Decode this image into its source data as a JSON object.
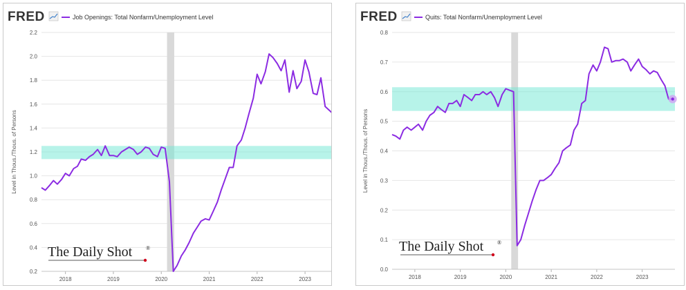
{
  "source_logo": "FRED",
  "watermark": {
    "text": "The Daily Shot",
    "mark": "®"
  },
  "colors": {
    "line": "#8b2be2",
    "band": "#6fe8d4",
    "recession": "#d9d9d9",
    "grid": "#e6e6e6",
    "endpoint": "#cfa6f2"
  },
  "chart_data": [
    {
      "type": "line",
      "series": [
        {
          "name": "Job Openings: Total Nonfarm/Unemployment Level"
        }
      ],
      "ylabel": "Level in Thous./Thous. of Persons",
      "xlim": [
        2017.5,
        2023.72
      ],
      "ylim": [
        0.2,
        2.2
      ],
      "yticks": [
        "0.2",
        "0.4",
        "0.6",
        "0.8",
        "1.0",
        "1.2",
        "1.4",
        "1.6",
        "1.8",
        "2.0",
        "2.2"
      ],
      "xticks": [
        "2018",
        "2019",
        "2020",
        "2021",
        "2022",
        "2023"
      ],
      "grid": "horizontal",
      "recession_shading": [
        2020.12,
        2020.27
      ],
      "highlight_band": [
        1.14,
        1.25
      ],
      "x": [
        2017.5,
        2017.58,
        2017.67,
        2017.75,
        2017.83,
        2017.92,
        2018.0,
        2018.08,
        2018.17,
        2018.25,
        2018.33,
        2018.42,
        2018.5,
        2018.58,
        2018.67,
        2018.75,
        2018.83,
        2018.92,
        2019.0,
        2019.08,
        2019.17,
        2019.25,
        2019.33,
        2019.42,
        2019.5,
        2019.58,
        2019.67,
        2019.75,
        2019.83,
        2019.92,
        2020.0,
        2020.08,
        2020.17,
        2020.25,
        2020.33,
        2020.42,
        2020.5,
        2020.58,
        2020.67,
        2020.75,
        2020.83,
        2020.92,
        2021.0,
        2021.08,
        2021.17,
        2021.25,
        2021.33,
        2021.42,
        2021.5,
        2021.58,
        2021.67,
        2021.75,
        2021.83,
        2021.92,
        2022.0,
        2022.08,
        2022.17,
        2022.25,
        2022.33,
        2022.42,
        2022.5,
        2022.58,
        2022.67,
        2022.75,
        2022.83,
        2022.92,
        2023.0,
        2023.08,
        2023.17,
        2023.25,
        2023.33,
        2023.42,
        2023.5,
        2023.58,
        2023.67
      ],
      "y": [
        0.9,
        0.88,
        0.92,
        0.96,
        0.93,
        0.97,
        1.02,
        1.0,
        1.06,
        1.08,
        1.14,
        1.13,
        1.16,
        1.18,
        1.22,
        1.17,
        1.25,
        1.17,
        1.17,
        1.16,
        1.2,
        1.22,
        1.24,
        1.22,
        1.18,
        1.2,
        1.24,
        1.23,
        1.18,
        1.16,
        1.24,
        1.23,
        0.95,
        0.2,
        0.25,
        0.33,
        0.38,
        0.44,
        0.52,
        0.57,
        0.62,
        0.64,
        0.63,
        0.7,
        0.78,
        0.88,
        0.97,
        1.07,
        1.07,
        1.25,
        1.3,
        1.4,
        1.52,
        1.65,
        1.85,
        1.77,
        1.87,
        2.02,
        1.99,
        1.94,
        1.88,
        1.97,
        1.7,
        1.88,
        1.73,
        1.79,
        1.97,
        1.87,
        1.69,
        1.68,
        1.82,
        1.58,
        1.55,
        1.52,
        1.5
      ]
    },
    {
      "type": "line",
      "series": [
        {
          "name": "Quits: Total Nonfarm/Unemployment Level"
        }
      ],
      "ylabel": "Level in Thous./Thous. of Persons",
      "xlim": [
        2017.5,
        2023.72
      ],
      "ylim": [
        0.0,
        0.8
      ],
      "yticks": [
        "0.0",
        "0.1",
        "0.2",
        "0.3",
        "0.4",
        "0.5",
        "0.6",
        "0.7",
        "0.8"
      ],
      "xticks": [
        "2018",
        "2019",
        "2020",
        "2021",
        "2022",
        "2023"
      ],
      "grid": "horizontal",
      "recession_shading": [
        2020.12,
        2020.27
      ],
      "highlight_band": [
        0.535,
        0.615
      ],
      "x": [
        2017.5,
        2017.58,
        2017.67,
        2017.75,
        2017.83,
        2017.92,
        2018.0,
        2018.08,
        2018.17,
        2018.25,
        2018.33,
        2018.42,
        2018.5,
        2018.58,
        2018.67,
        2018.75,
        2018.83,
        2018.92,
        2019.0,
        2019.08,
        2019.17,
        2019.25,
        2019.33,
        2019.42,
        2019.5,
        2019.58,
        2019.67,
        2019.75,
        2019.83,
        2019.92,
        2020.0,
        2020.08,
        2020.17,
        2020.25,
        2020.33,
        2020.42,
        2020.5,
        2020.58,
        2020.67,
        2020.75,
        2020.83,
        2020.92,
        2021.0,
        2021.08,
        2021.17,
        2021.25,
        2021.33,
        2021.42,
        2021.5,
        2021.58,
        2021.67,
        2021.75,
        2021.83,
        2021.92,
        2022.0,
        2022.08,
        2022.17,
        2022.25,
        2022.33,
        2022.42,
        2022.5,
        2022.58,
        2022.67,
        2022.75,
        2022.83,
        2022.92,
        2023.0,
        2023.08,
        2023.17,
        2023.25,
        2023.33,
        2023.42,
        2023.5,
        2023.58,
        2023.67
      ],
      "y": [
        0.455,
        0.45,
        0.44,
        0.47,
        0.48,
        0.47,
        0.48,
        0.49,
        0.47,
        0.5,
        0.52,
        0.53,
        0.55,
        0.54,
        0.53,
        0.56,
        0.56,
        0.57,
        0.55,
        0.59,
        0.58,
        0.57,
        0.59,
        0.59,
        0.6,
        0.59,
        0.6,
        0.58,
        0.55,
        0.59,
        0.61,
        0.605,
        0.6,
        0.08,
        0.1,
        0.15,
        0.19,
        0.23,
        0.27,
        0.3,
        0.3,
        0.31,
        0.32,
        0.34,
        0.36,
        0.4,
        0.41,
        0.42,
        0.47,
        0.49,
        0.56,
        0.57,
        0.66,
        0.69,
        0.67,
        0.7,
        0.75,
        0.745,
        0.7,
        0.705,
        0.705,
        0.71,
        0.7,
        0.67,
        0.69,
        0.71,
        0.685,
        0.675,
        0.66,
        0.67,
        0.665,
        0.64,
        0.62,
        0.575,
        0.575
      ]
    }
  ]
}
